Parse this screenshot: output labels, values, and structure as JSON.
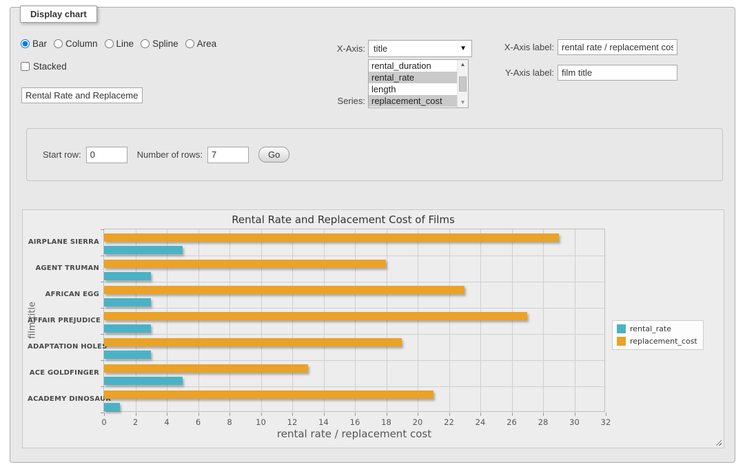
{
  "panel": {
    "legend": "Display chart"
  },
  "controls": {
    "chart_type": {
      "options": [
        "Bar",
        "Column",
        "Line",
        "Spline",
        "Area"
      ],
      "selected": "Bar"
    },
    "stacked": {
      "label": "Stacked",
      "checked": false
    },
    "title_field": {
      "value": "Rental Rate and Replacemer"
    },
    "x_axis": {
      "label": "X-Axis:",
      "selected_option": "title"
    },
    "series": {
      "label": "Series:",
      "options": [
        "rental_duration",
        "rental_rate",
        "length",
        "replacement_cost"
      ],
      "selected": [
        "rental_rate",
        "replacement_cost"
      ]
    },
    "x_axis_label": {
      "label": "X-Axis label:",
      "value": "rental rate / replacement cost"
    },
    "y_axis_label": {
      "label": "Y-Axis label:",
      "value": "film title"
    }
  },
  "row_form": {
    "start_row_label": "Start row:",
    "start_row_value": "0",
    "number_of_rows_label": "Number of rows:",
    "number_of_rows_value": "7",
    "go_label": "Go"
  },
  "chart_data": {
    "type": "bar",
    "orientation": "horizontal",
    "title": "Rental Rate and Replacement Cost of Films",
    "categories": [
      "AIRPLANE SIERRA",
      "AGENT TRUMAN",
      "AFRICAN EGG",
      "AFFAIR PREJUDICE",
      "ADAPTATION HOLES",
      "ACE GOLDFINGER",
      "ACADEMY DINOSAUR"
    ],
    "series": [
      {
        "name": "rental_rate",
        "color": "#4bb2c5",
        "values": [
          4.99,
          2.99,
          2.99,
          2.99,
          2.99,
          4.99,
          0.99
        ]
      },
      {
        "name": "replacement_cost",
        "color": "#eaa228",
        "values": [
          28.99,
          17.99,
          22.99,
          26.99,
          18.99,
          12.99,
          20.99
        ]
      }
    ],
    "xlabel": "rental rate / replacement cost",
    "ylabel": "film title",
    "xlim": [
      0,
      32
    ],
    "xticks": [
      0,
      2,
      4,
      6,
      8,
      10,
      12,
      14,
      16,
      18,
      20,
      22,
      24,
      26,
      28,
      30,
      32
    ],
    "grid": true,
    "legend_position": "right",
    "colors": {
      "grid_line": "#cfcfcf",
      "plot_bg": "#ededed"
    }
  }
}
